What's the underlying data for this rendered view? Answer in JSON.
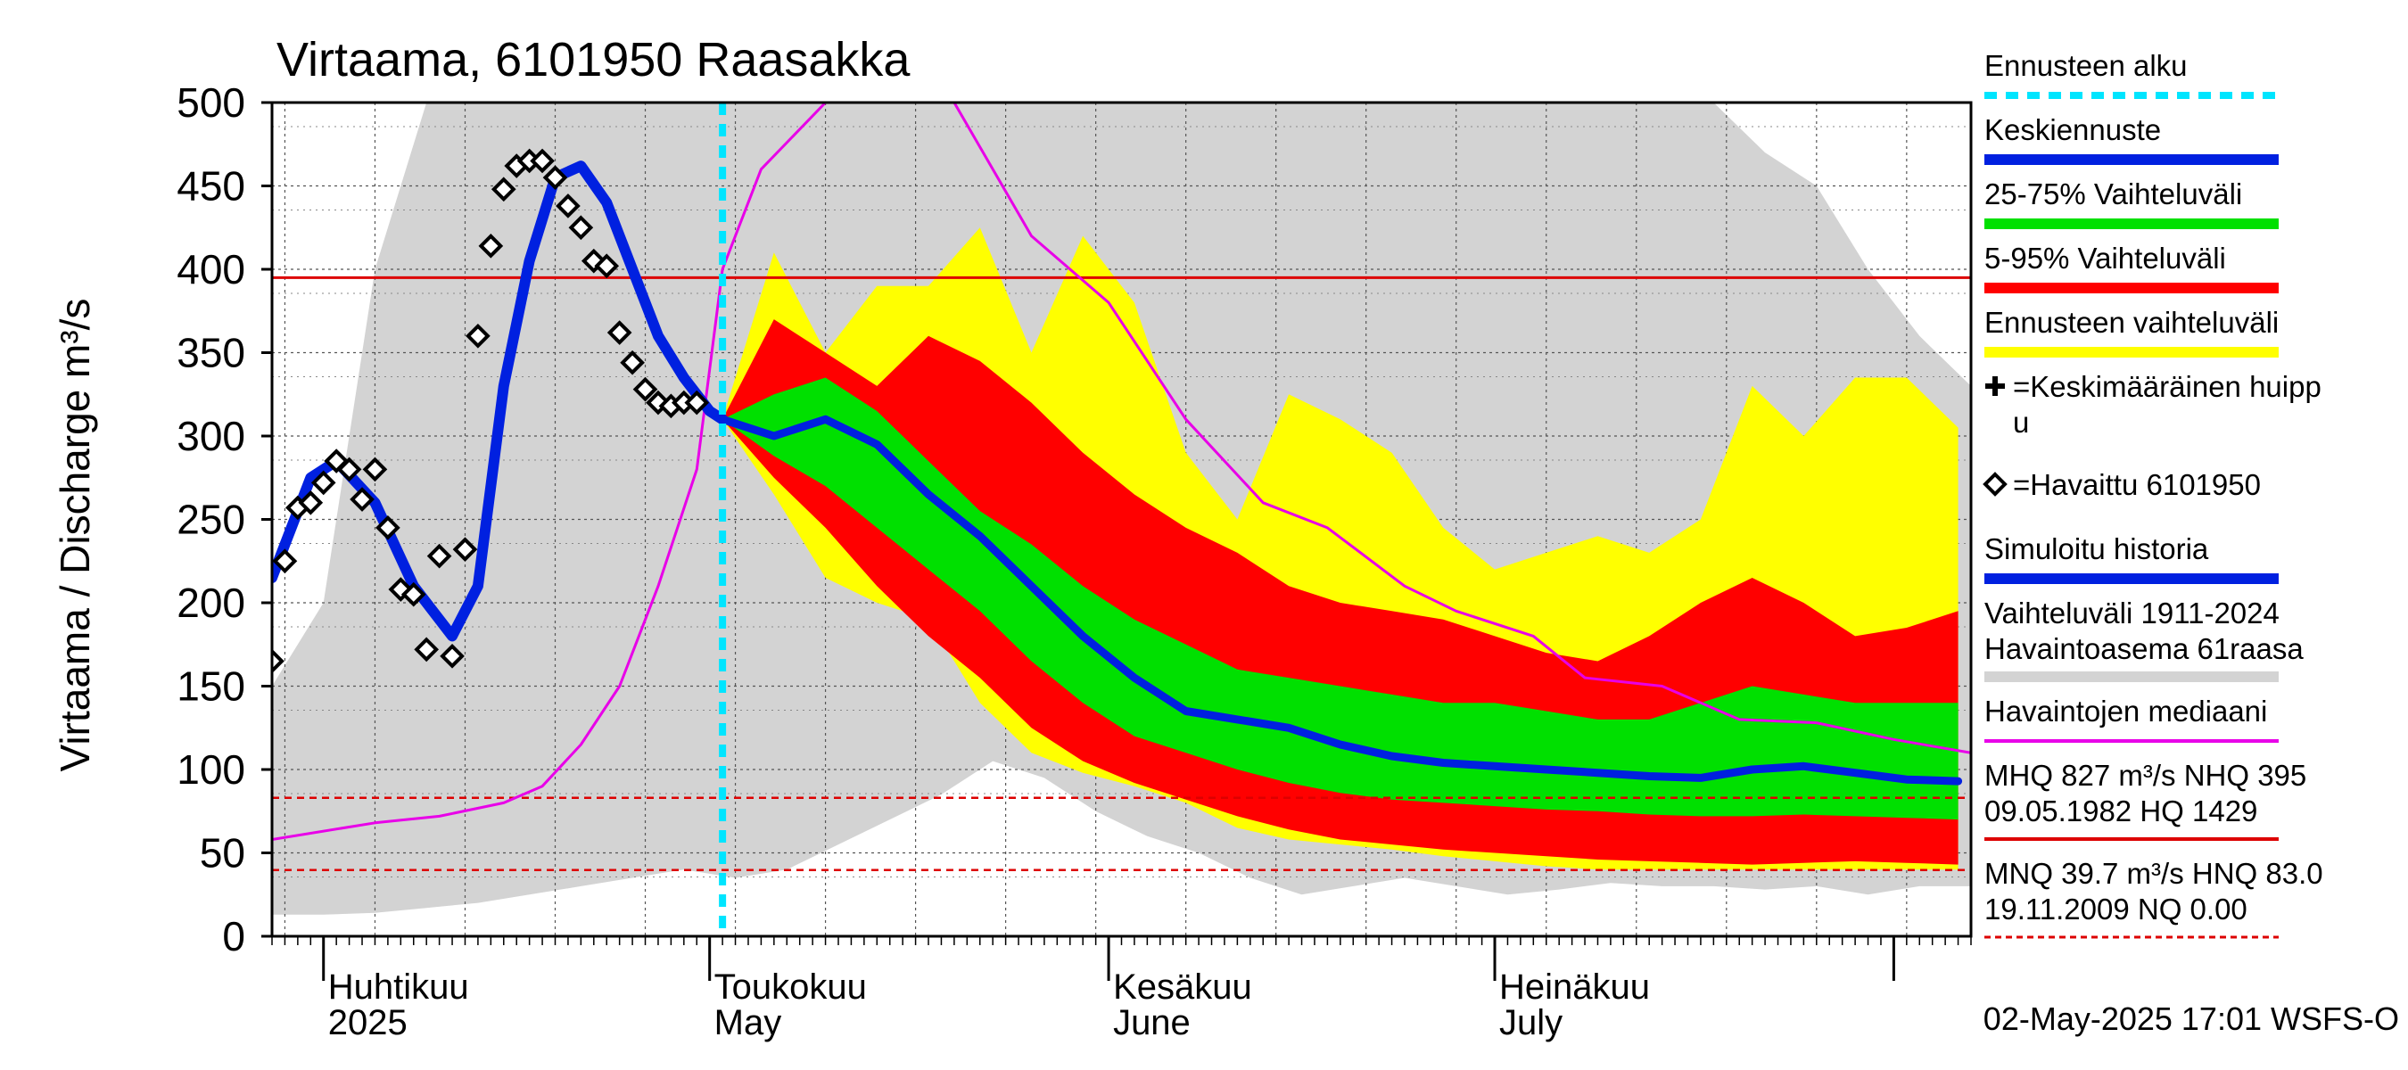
{
  "chart_data": {
    "type": "area",
    "title": "Virtaama, 6101950 Raasakka",
    "ylabel": "Virtaama / Discharge   m³/s",
    "ylim": [
      0,
      500
    ],
    "yticks": [
      0,
      50,
      100,
      150,
      200,
      250,
      300,
      350,
      400,
      450,
      500
    ],
    "xlim": [
      "2025-03-28",
      "2025-08-07"
    ],
    "x_month_labels": [
      {
        "date": "2025-04-01",
        "fi": "Huhtikuu",
        "en": "2025"
      },
      {
        "date": "2025-05-01",
        "fi": "Toukokuu",
        "en": "May"
      },
      {
        "date": "2025-06-01",
        "fi": "Kesäkuu",
        "en": "June"
      },
      {
        "date": "2025-07-01",
        "fi": "Heinäkuu",
        "en": "July"
      }
    ],
    "grid": true,
    "forecast_start": "2025-05-02",
    "colors": {
      "forecast_start": "#00e5ff",
      "mean_forecast": "#0020e0",
      "band_25_75": "#00e000",
      "band_5_95": "#ff0000",
      "band_forecast": "#ffff00",
      "historical_range": "#d3d3d3",
      "observed_median": "#e800e8",
      "reference_solid": "#dd0000",
      "reference_dashed": "#dd0000"
    },
    "legend": {
      "placement": "right",
      "items": [
        {
          "label": "Ennusteen alku",
          "style": "dashed",
          "color": "#00e5ff"
        },
        {
          "label": "Keskiennuste",
          "style": "line",
          "color": "#0020e0"
        },
        {
          "label": "25-75% Vaihteluväli",
          "style": "line",
          "color": "#00e000"
        },
        {
          "label": "5-95% Vaihteluväli",
          "style": "line",
          "color": "#ff0000"
        },
        {
          "label": "Ennusteen vaihteluväli",
          "style": "line",
          "color": "#ffff00"
        },
        {
          "label": "=Keskimääräinen huipp",
          "label2": "u",
          "style": "plus",
          "color": "#000000"
        },
        {
          "label": "=Havaittu 6101950",
          "style": "diamond",
          "color": "#000000"
        },
        {
          "label": "Simuloitu historia",
          "style": "line",
          "color": "#0020e0"
        },
        {
          "label": "Vaihteluväli 1911-2024",
          "label2": " Havaintoasema 61raasa",
          "style": "line",
          "color": "#d3d3d3"
        },
        {
          "label": "Havaintojen mediaani",
          "style": "thin",
          "color": "#e800e8"
        },
        {
          "label": "MHQ  827 m³/s NHQ  395",
          "label2": "09.05.1982 HQ 1429",
          "style": "thin",
          "color": "#dd0000"
        },
        {
          "label": "MNQ 39.7 m³/s HNQ 83.0",
          "label2": "19.11.2009 NQ 0.00",
          "style": "dashed-thin",
          "color": "#dd0000"
        }
      ]
    },
    "footer": "02-May-2025 17:01 WSFS-O",
    "reference_lines": [
      {
        "name": "NHQ",
        "value": 395,
        "style": "solid"
      },
      {
        "name": "HNQ",
        "value": 83.0,
        "style": "dashed"
      },
      {
        "name": "MNQ",
        "value": 39.7,
        "style": "dashed"
      },
      {
        "name": "NQ",
        "value": 0.0,
        "style": "dashed"
      }
    ],
    "historical_range_dates": [
      "2025-03-28",
      "2025-04-01",
      "2025-04-05",
      "2025-04-09",
      "2025-04-13",
      "2025-04-17",
      "2025-04-21",
      "2025-04-25",
      "2025-04-29",
      "2025-05-03",
      "2025-05-07",
      "2025-05-11",
      "2025-05-15",
      "2025-05-19",
      "2025-05-23",
      "2025-05-27",
      "2025-05-31",
      "2025-06-04",
      "2025-06-08",
      "2025-06-12",
      "2025-06-16",
      "2025-06-20",
      "2025-06-24",
      "2025-06-28",
      "2025-07-02",
      "2025-07-06",
      "2025-07-10",
      "2025-07-14",
      "2025-07-18",
      "2025-07-22",
      "2025-07-26",
      "2025-07-30",
      "2025-08-03",
      "2025-08-07"
    ],
    "historical_range_upper": [
      150,
      200,
      400,
      500,
      500,
      500,
      500,
      500,
      500,
      500,
      500,
      500,
      500,
      500,
      500,
      500,
      500,
      500,
      500,
      500,
      500,
      500,
      500,
      500,
      500,
      500,
      500,
      500,
      500,
      470,
      450,
      400,
      360,
      330
    ],
    "historical_range_lower": [
      13,
      13,
      14,
      17,
      20,
      25,
      30,
      35,
      40,
      35,
      40,
      55,
      70,
      85,
      105,
      95,
      75,
      60,
      50,
      35,
      25,
      30,
      35,
      30,
      25,
      28,
      32,
      30,
      30,
      28,
      30,
      25,
      30,
      30
    ],
    "forecast_dates": [
      "2025-05-02",
      "2025-05-06",
      "2025-05-10",
      "2025-05-14",
      "2025-05-18",
      "2025-05-22",
      "2025-05-26",
      "2025-05-30",
      "2025-06-03",
      "2025-06-07",
      "2025-06-11",
      "2025-06-15",
      "2025-06-19",
      "2025-06-23",
      "2025-06-27",
      "2025-07-01",
      "2025-07-05",
      "2025-07-09",
      "2025-07-13",
      "2025-07-17",
      "2025-07-21",
      "2025-07-25",
      "2025-07-29",
      "2025-08-02",
      "2025-08-06"
    ],
    "forecast_max": [
      310,
      410,
      350,
      390,
      390,
      425,
      350,
      420,
      380,
      290,
      250,
      325,
      310,
      290,
      245,
      220,
      230,
      240,
      230,
      250,
      330,
      300,
      335,
      335,
      305
    ],
    "band_95": [
      310,
      370,
      350,
      330,
      360,
      345,
      320,
      290,
      265,
      245,
      230,
      210,
      200,
      195,
      190,
      180,
      170,
      165,
      180,
      200,
      215,
      200,
      180,
      185,
      195
    ],
    "band_75": [
      310,
      325,
      335,
      315,
      285,
      255,
      235,
      210,
      190,
      175,
      160,
      155,
      150,
      145,
      140,
      140,
      135,
      130,
      130,
      140,
      150,
      145,
      140,
      140,
      140
    ],
    "mean_forecast": [
      310,
      300,
      310,
      295,
      265,
      240,
      210,
      180,
      155,
      135,
      130,
      125,
      115,
      108,
      104,
      102,
      100,
      98,
      96,
      95,
      100,
      102,
      98,
      94,
      93
    ],
    "band_25": [
      310,
      288,
      270,
      245,
      220,
      195,
      165,
      140,
      120,
      110,
      100,
      92,
      86,
      82,
      80,
      78,
      76,
      75,
      73,
      72,
      72,
      73,
      72,
      71,
      70
    ],
    "band_5": [
      310,
      275,
      245,
      210,
      180,
      155,
      125,
      105,
      92,
      82,
      72,
      64,
      58,
      55,
      52,
      50,
      48,
      46,
      45,
      44,
      43,
      44,
      45,
      44,
      43
    ],
    "forecast_min": [
      310,
      265,
      215,
      200,
      190,
      140,
      110,
      98,
      90,
      80,
      65,
      58,
      55,
      52,
      48,
      45,
      42,
      40,
      40,
      40,
      40,
      40,
      40,
      40,
      40
    ],
    "observed_median_dates": [
      "2025-03-28",
      "2025-04-05",
      "2025-04-10",
      "2025-04-15",
      "2025-04-18",
      "2025-04-21",
      "2025-04-24",
      "2025-04-27",
      "2025-04-30",
      "2025-05-02",
      "2025-05-05",
      "2025-05-10",
      "2025-05-15",
      "2025-05-20",
      "2025-05-26",
      "2025-06-01",
      "2025-06-07",
      "2025-06-13",
      "2025-06-18",
      "2025-06-24",
      "2025-06-28",
      "2025-07-04",
      "2025-07-08",
      "2025-07-14",
      "2025-07-20",
      "2025-07-26",
      "2025-08-01",
      "2025-08-07"
    ],
    "observed_median": [
      58,
      68,
      72,
      80,
      90,
      115,
      150,
      210,
      280,
      400,
      460,
      520,
      620,
      530,
      420,
      380,
      310,
      260,
      245,
      210,
      195,
      180,
      155,
      150,
      130,
      128,
      118,
      110
    ],
    "simulated_history_dates": [
      "2025-03-28",
      "2025-03-31",
      "2025-04-02",
      "2025-04-05",
      "2025-04-08",
      "2025-04-11",
      "2025-04-13",
      "2025-04-15",
      "2025-04-17",
      "2025-04-19",
      "2025-04-21",
      "2025-04-23",
      "2025-04-25",
      "2025-04-27",
      "2025-04-29",
      "2025-05-01",
      "2025-05-02"
    ],
    "simulated_history": [
      215,
      275,
      285,
      260,
      210,
      180,
      210,
      330,
      405,
      455,
      462,
      440,
      400,
      360,
      335,
      315,
      310
    ],
    "observed_dates": [
      "2025-03-28",
      "2025-03-29",
      "2025-03-30",
      "2025-03-31",
      "2025-04-01",
      "2025-04-02",
      "2025-04-03",
      "2025-04-04",
      "2025-04-05",
      "2025-04-06",
      "2025-04-07",
      "2025-04-08",
      "2025-04-09",
      "2025-04-10",
      "2025-04-11",
      "2025-04-12",
      "2025-04-13",
      "2025-04-14",
      "2025-04-15",
      "2025-04-16",
      "2025-04-17",
      "2025-04-18",
      "2025-04-19",
      "2025-04-20",
      "2025-04-21",
      "2025-04-22",
      "2025-04-23",
      "2025-04-24",
      "2025-04-25",
      "2025-04-26",
      "2025-04-27",
      "2025-04-28",
      "2025-04-29",
      "2025-04-30"
    ],
    "observed": [
      165,
      225,
      257,
      260,
      272,
      285,
      280,
      262,
      280,
      245,
      208,
      205,
      172,
      228,
      168,
      232,
      360,
      414,
      448,
      462,
      465,
      465,
      455,
      438,
      425,
      405,
      402,
      362,
      344,
      328,
      320,
      318,
      320,
      320
    ]
  }
}
